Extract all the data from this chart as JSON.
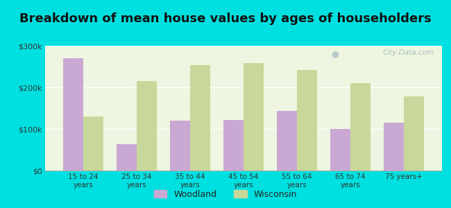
{
  "title": "Breakdown of mean house values by ages of householders",
  "categories": [
    "15 to 24\nyears",
    "25 to 34\nyears",
    "35 to 44\nyears",
    "45 to 54\nyears",
    "55 to 64\nyears",
    "65 to 74\nyears",
    "75 years+"
  ],
  "woodland_values": [
    270000,
    63000,
    120000,
    122000,
    143000,
    100000,
    115000
  ],
  "wisconsin_values": [
    130000,
    215000,
    253000,
    258000,
    242000,
    210000,
    178000
  ],
  "woodland_color": "#c9a8d4",
  "wisconsin_color": "#c8d89a",
  "ylim": [
    0,
    300000
  ],
  "yticks": [
    0,
    100000,
    200000,
    300000
  ],
  "ytick_labels": [
    "$0",
    "$100k",
    "$200k",
    "$300k"
  ],
  "plot_bg_color": "#eef5e0",
  "outer_background": "#00e0e0",
  "watermark": "City-Data.com",
  "legend_labels": [
    "Woodland",
    "Wisconsin"
  ],
  "bar_width": 0.38,
  "title_fontsize": 13
}
